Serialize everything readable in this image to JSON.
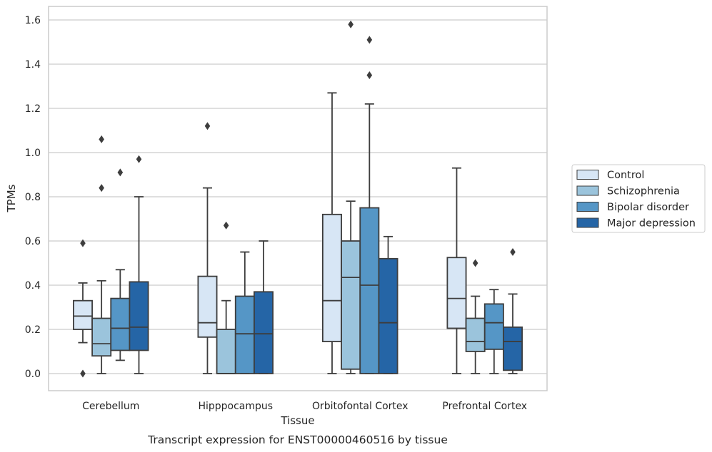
{
  "chart_data": {
    "type": "box",
    "title": "",
    "caption": "Transcript expression for ENST00000460516 by tissue",
    "xlabel": "Tissue",
    "ylabel": "TPMs",
    "ylim": [
      -0.075,
      1.66
    ],
    "yticks": [
      "0.0",
      "0.2",
      "0.4",
      "0.6",
      "0.8",
      "1.0",
      "1.2",
      "1.4",
      "1.6"
    ],
    "grid": "horizontal",
    "legend_position": "right",
    "categories": [
      "Cerebellum",
      "Hipppocampus",
      "Orbitofontal Cortex",
      "Prefrontal Cortex"
    ],
    "series": [
      {
        "name": "Control",
        "color": "#d7e6f5",
        "boxes": [
          {
            "whisker_low": 0.14,
            "q1": 0.2,
            "median": 0.26,
            "q3": 0.33,
            "whisker_high": 0.41,
            "outliers": [
              0.59,
              0.0
            ]
          },
          {
            "whisker_low": 0.0,
            "q1": 0.165,
            "median": 0.23,
            "q3": 0.44,
            "whisker_high": 0.84,
            "outliers": [
              1.12
            ]
          },
          {
            "whisker_low": 0.0,
            "q1": 0.145,
            "median": 0.33,
            "q3": 0.72,
            "whisker_high": 1.27,
            "outliers": []
          },
          {
            "whisker_low": 0.0,
            "q1": 0.205,
            "median": 0.34,
            "q3": 0.525,
            "whisker_high": 0.93,
            "outliers": []
          }
        ]
      },
      {
        "name": "Schizophrenia",
        "color": "#9bc4dc",
        "boxes": [
          {
            "whisker_low": 0.0,
            "q1": 0.08,
            "median": 0.135,
            "q3": 0.25,
            "whisker_high": 0.42,
            "outliers": [
              0.84,
              1.06
            ]
          },
          {
            "whisker_low": 0.0,
            "q1": 0.0,
            "median": 0.0,
            "q3": 0.2,
            "whisker_high": 0.33,
            "outliers": [
              0.67
            ]
          },
          {
            "whisker_low": 0.0,
            "q1": 0.02,
            "median": 0.435,
            "q3": 0.6,
            "whisker_high": 0.78,
            "outliers": [
              1.58
            ]
          },
          {
            "whisker_low": 0.0,
            "q1": 0.1,
            "median": 0.145,
            "q3": 0.25,
            "whisker_high": 0.35,
            "outliers": [
              0.5
            ]
          }
        ]
      },
      {
        "name": "Bipolar disorder",
        "color": "#5596c6",
        "boxes": [
          {
            "whisker_low": 0.06,
            "q1": 0.105,
            "median": 0.205,
            "q3": 0.34,
            "whisker_high": 0.47,
            "outliers": [
              0.91
            ]
          },
          {
            "whisker_low": 0.0,
            "q1": 0.0,
            "median": 0.18,
            "q3": 0.35,
            "whisker_high": 0.55,
            "outliers": []
          },
          {
            "whisker_low": 0.0,
            "q1": 0.0,
            "median": 0.4,
            "q3": 0.75,
            "whisker_high": 1.22,
            "outliers": [
              1.35,
              1.51
            ]
          },
          {
            "whisker_low": 0.0,
            "q1": 0.11,
            "median": 0.23,
            "q3": 0.315,
            "whisker_high": 0.38,
            "outliers": []
          }
        ]
      },
      {
        "name": "Major depression",
        "color": "#2565a6",
        "boxes": [
          {
            "whisker_low": 0.0,
            "q1": 0.105,
            "median": 0.21,
            "q3": 0.415,
            "whisker_high": 0.8,
            "outliers": [
              0.97
            ]
          },
          {
            "whisker_low": 0.0,
            "q1": 0.0,
            "median": 0.18,
            "q3": 0.37,
            "whisker_high": 0.6,
            "outliers": []
          },
          {
            "whisker_low": 0.0,
            "q1": 0.0,
            "median": 0.23,
            "q3": 0.52,
            "whisker_high": 0.62,
            "outliers": []
          },
          {
            "whisker_low": 0.0,
            "q1": 0.015,
            "median": 0.145,
            "q3": 0.21,
            "whisker_high": 0.36,
            "outliers": [
              0.55
            ]
          }
        ]
      }
    ]
  }
}
